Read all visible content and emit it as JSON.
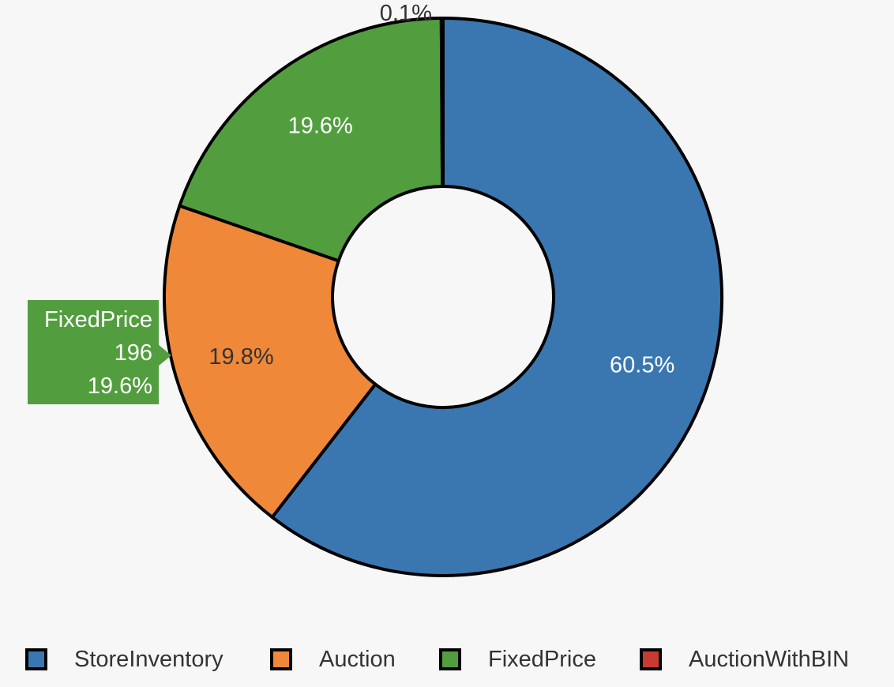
{
  "chart_data": {
    "type": "pie",
    "variant": "donut",
    "title": "",
    "categories": [
      "StoreInventory",
      "Auction",
      "FixedPrice",
      "AuctionWithBIN"
    ],
    "values": [
      605,
      198,
      196,
      1
    ],
    "percent_labels": [
      "60.5%",
      "19.8%",
      "19.6%",
      "0.1%"
    ],
    "colors": [
      "#3a77b0",
      "#ef8839",
      "#529e3f",
      "#c83a34"
    ],
    "label_colors": [
      "#ffffff",
      "#333333",
      "#ffffff",
      "#333333"
    ],
    "legend_placement": "bottom",
    "start_angle_deg": 0,
    "direction": "clockwise"
  },
  "legend": {
    "items": [
      {
        "label": "StoreInventory",
        "color": "#3a77b0"
      },
      {
        "label": "Auction",
        "color": "#ef8839"
      },
      {
        "label": "FixedPrice",
        "color": "#529e3f"
      },
      {
        "label": "AuctionWithBIN",
        "color": "#c83a34"
      }
    ]
  },
  "tooltip": {
    "label": "FixedPrice",
    "value": "196",
    "percent": "19.6%",
    "color": "#529e3f"
  }
}
